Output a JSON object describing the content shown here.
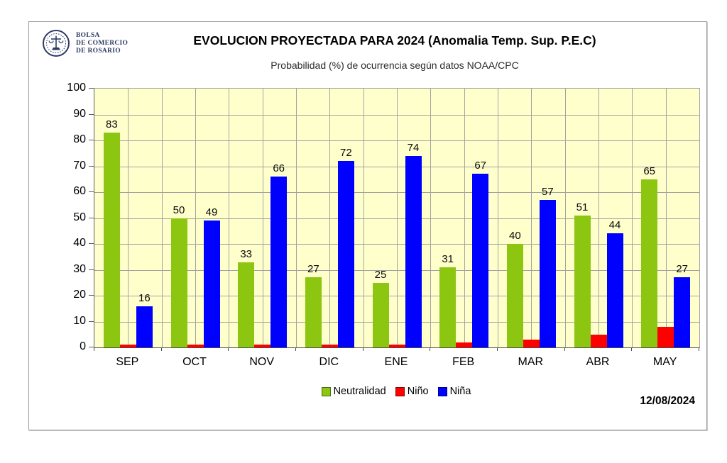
{
  "figure": {
    "title": "EVOLUCION PROYECTADA PARA 2024 (Anomalia Temp. Sup. P.E.C)",
    "subtitle": "Probabilidad (%) de ocurrencia según datos NOAA/CPC",
    "date_label": "12/08/2024"
  },
  "logo": {
    "organization": "Bolsa de Comercio de Rosario",
    "lines": [
      "BOLSA",
      "DE COMERCIO",
      "DE ROSARIO"
    ],
    "color": "#2E3A66"
  },
  "chart_data": {
    "type": "bar",
    "title": "EVOLUCION PROYECTADA PARA 2024 (Anomalia Temp. Sup. P.E.C)",
    "subtitle": "Probabilidad (%) de ocurrencia según datos NOAA/CPC",
    "categories": [
      "SEP",
      "OCT",
      "NOV",
      "DIC",
      "ENE",
      "FEB",
      "MAR",
      "ABR",
      "MAY"
    ],
    "series": [
      {
        "name": "Neutralidad",
        "color": "#8CC611",
        "labels_visible": true,
        "values": [
          83,
          50,
          33,
          27,
          25,
          31,
          40,
          51,
          65
        ]
      },
      {
        "name": "Niño",
        "color": "#FF0000",
        "labels_visible": false,
        "values": [
          1,
          1,
          1,
          1,
          1,
          2,
          3,
          5,
          8
        ]
      },
      {
        "name": "Niña",
        "color": "#0000FF",
        "labels_visible": true,
        "values": [
          16,
          49,
          66,
          72,
          74,
          67,
          57,
          44,
          27
        ]
      }
    ],
    "ylabel": "",
    "xlabel": "",
    "ylim": [
      0,
      100
    ],
    "yticks": [
      0,
      10,
      20,
      30,
      40,
      50,
      60,
      70,
      80,
      90,
      100
    ],
    "grid": {
      "horizontal": true,
      "vertical": true,
      "color": "#a3a3a3"
    },
    "plot_background": "#FFFFCC",
    "legend_position": "bottom"
  }
}
